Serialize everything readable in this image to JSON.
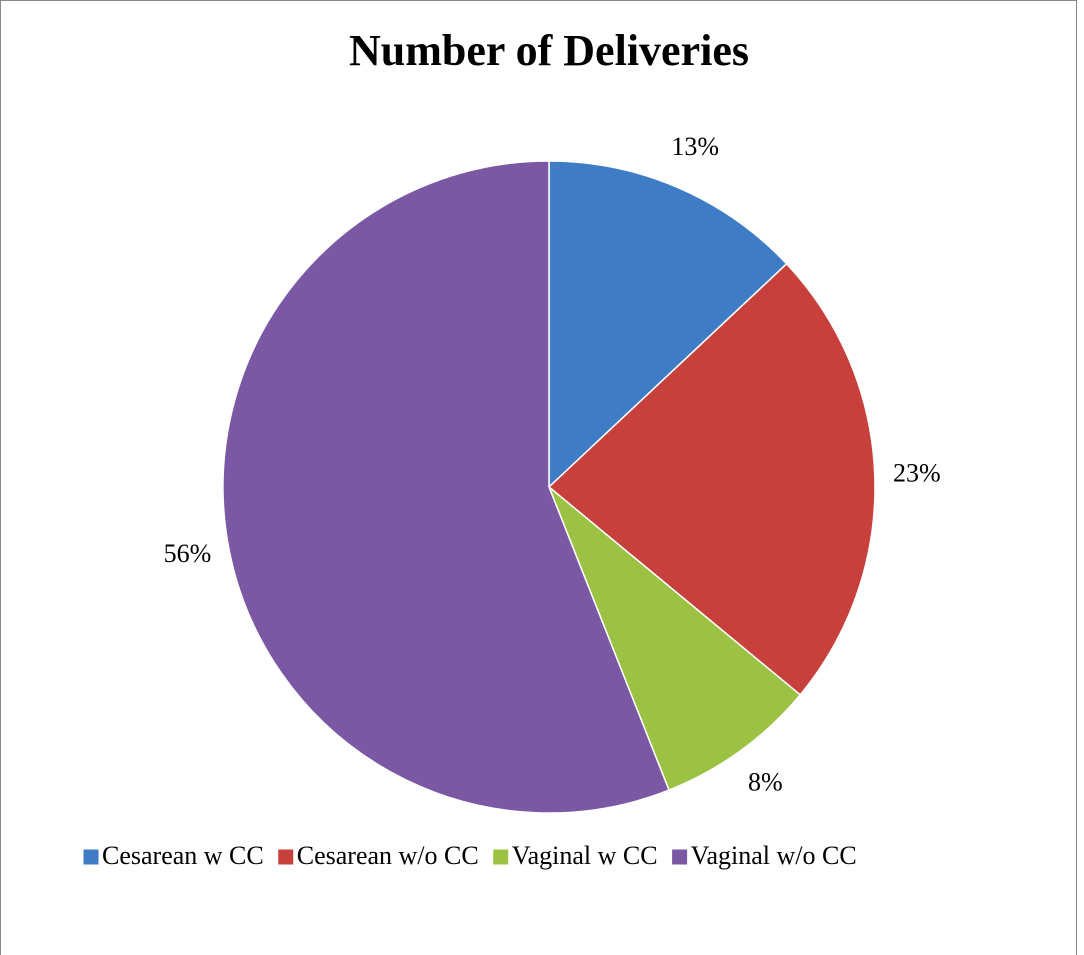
{
  "chart_data": {
    "type": "pie",
    "title": "Number of Deliveries",
    "categories": [
      "Cesarean w CC",
      "Cesarean w/o CC",
      "Vaginal w CC",
      "Vaginal w/o CC"
    ],
    "values": [
      13,
      23,
      8,
      56
    ],
    "value_labels": [
      "13%",
      "23%",
      "8%",
      "56%"
    ],
    "colors": [
      "#3f7cc6",
      "#c8403c",
      "#9cc244",
      "#7b58a4"
    ],
    "legend": "bottom"
  }
}
